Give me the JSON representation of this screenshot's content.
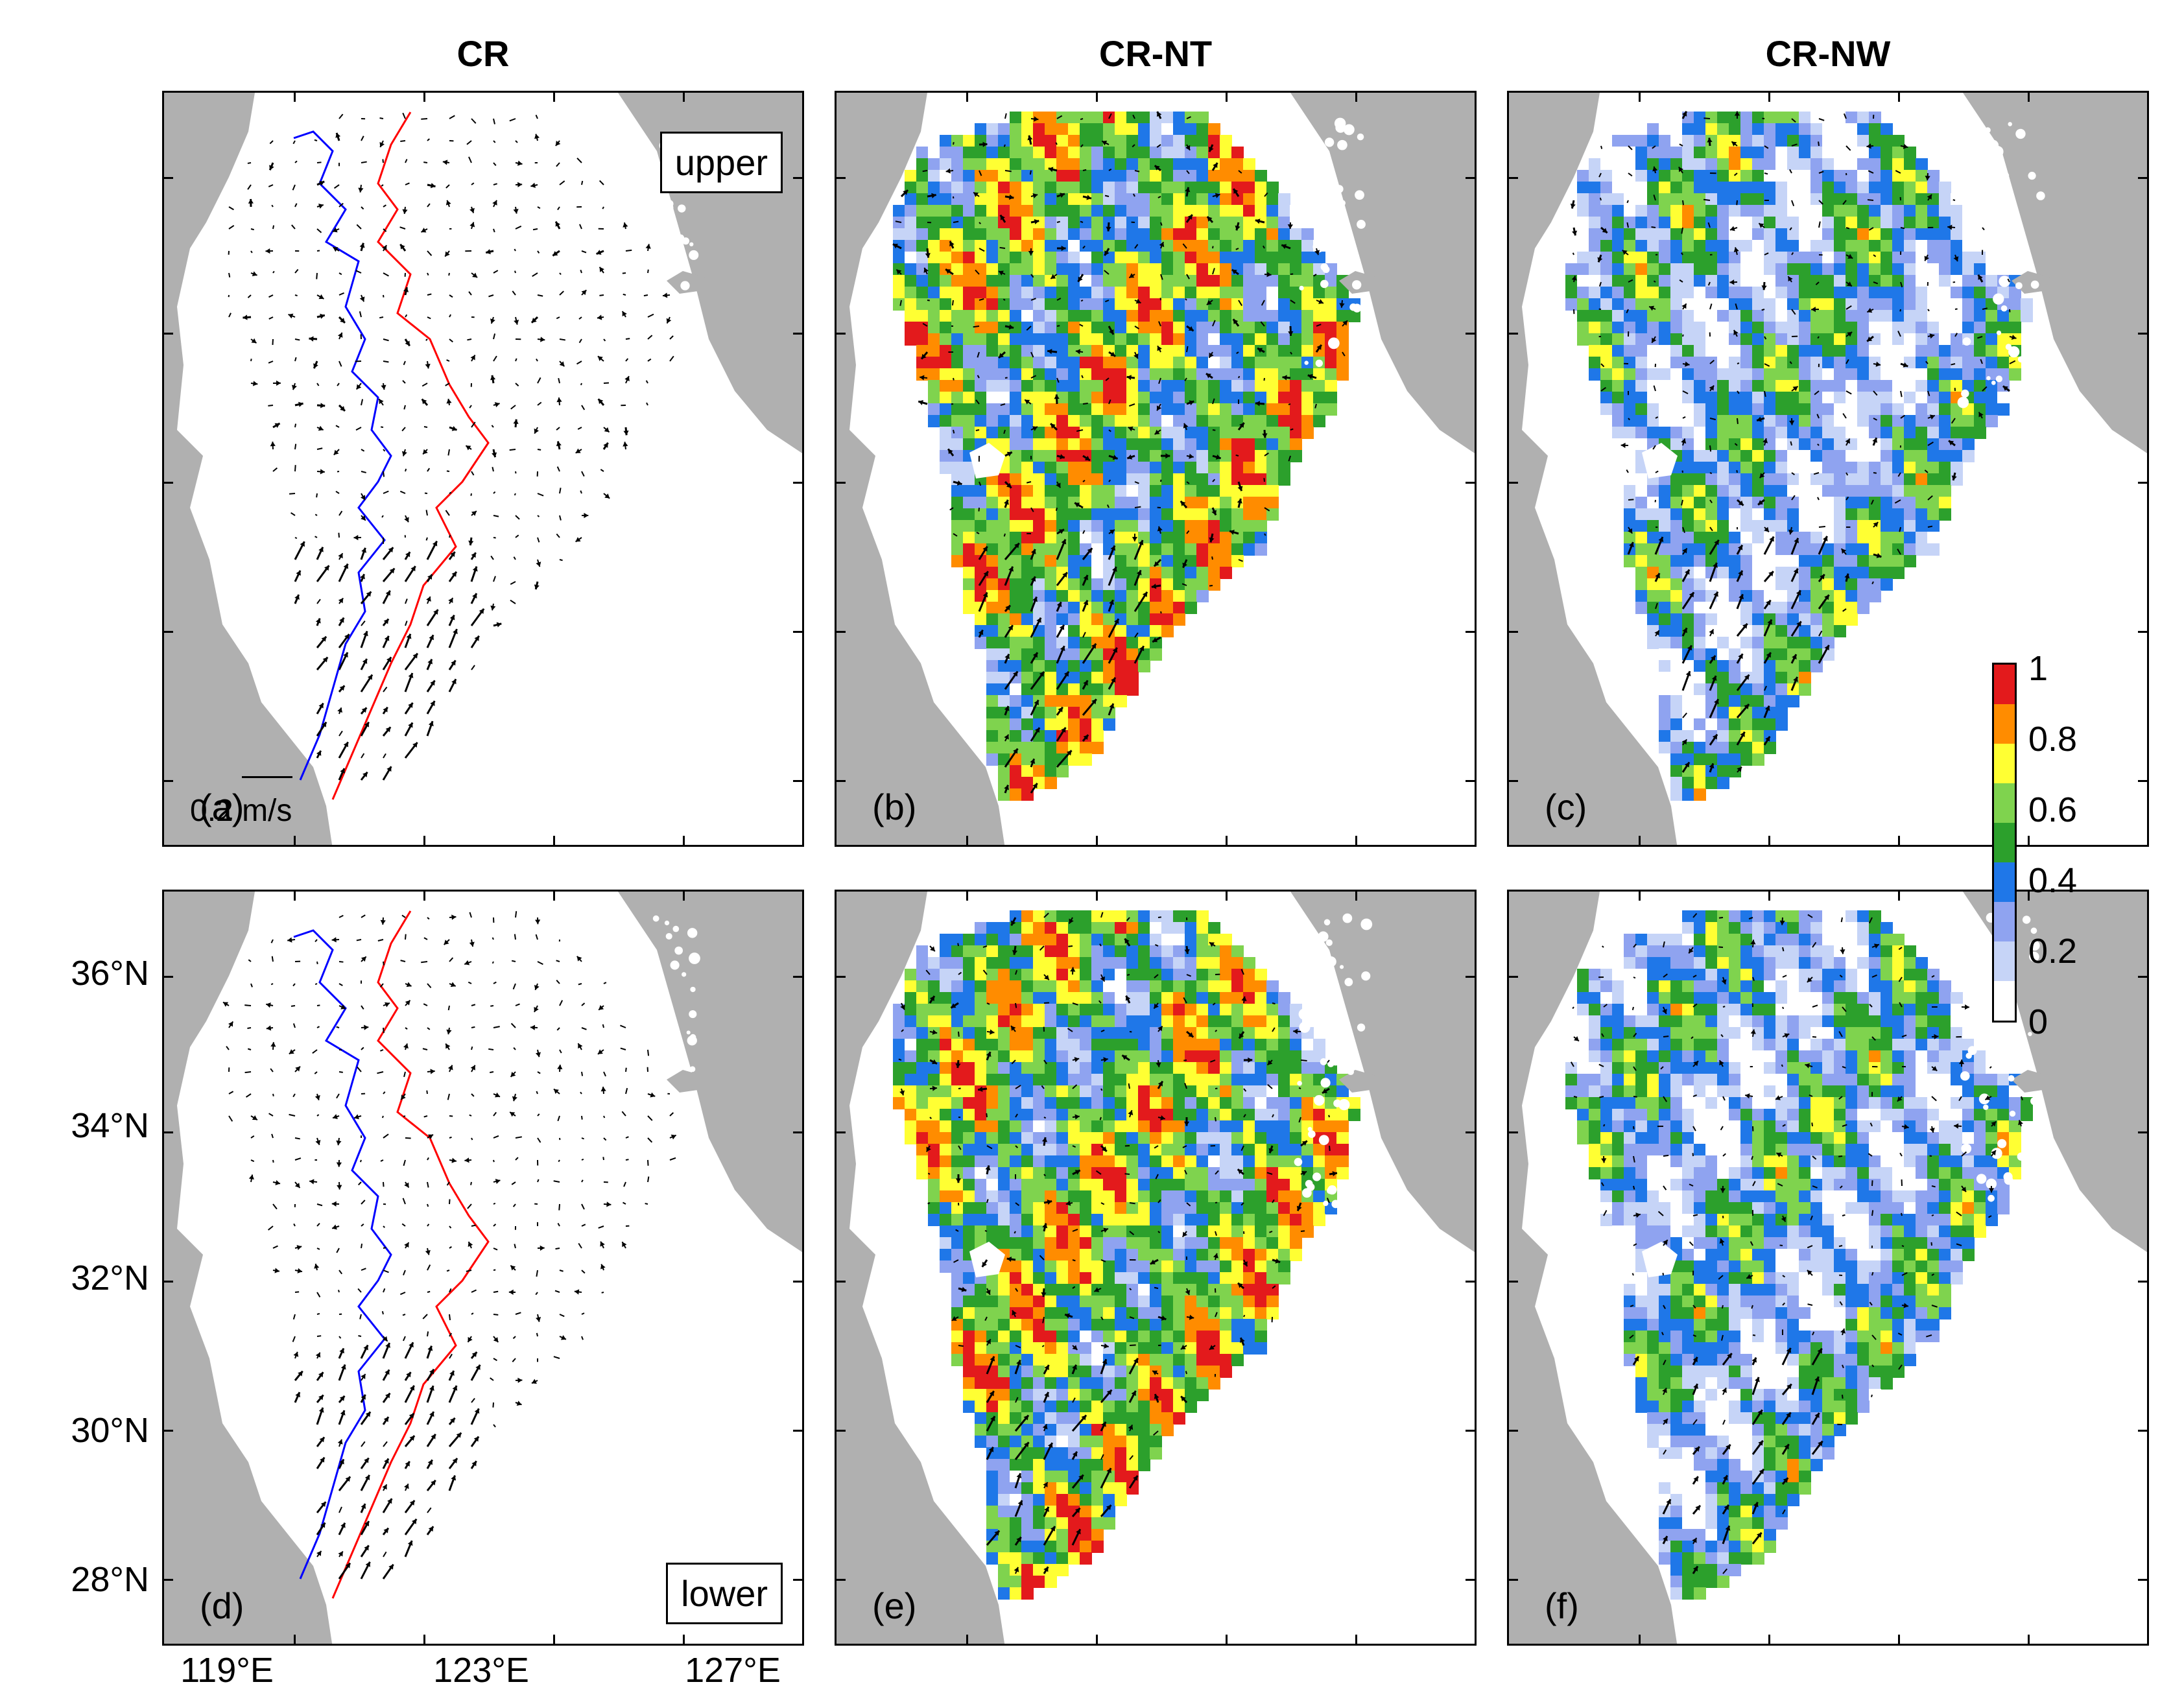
{
  "columns": [
    "CR",
    "CR-NT",
    "CR-NW"
  ],
  "panels": {
    "a": {
      "label": "(a)",
      "box": "upper"
    },
    "b": {
      "label": "(b)"
    },
    "c": {
      "label": "(c)"
    },
    "d": {
      "label": "(d)",
      "box": "lower"
    },
    "e": {
      "label": "(e)"
    },
    "f": {
      "label": "(f)"
    }
  },
  "scale_label": "0.2 m/s",
  "y_ticks": [
    "36°N",
    "34°N",
    "32°N",
    "30°N",
    "28°N"
  ],
  "x_ticks": [
    "119°E",
    "123°E",
    "127°E"
  ],
  "colorbar": {
    "labels": [
      "1",
      "0.8",
      "0.6",
      "0.4",
      "0.2",
      "0"
    ],
    "colors": [
      "#e31a1c",
      "#ff8c00",
      "#ffff33",
      "#7fd34e",
      "#2ca02c",
      "#1f77e8",
      "#8fa3f0",
      "#c6d4f7",
      "#ffffff"
    ]
  },
  "colors": {
    "land": "#b0b0b0",
    "contour_blue": "#0000ff",
    "contour_red": "#ff0000"
  }
}
